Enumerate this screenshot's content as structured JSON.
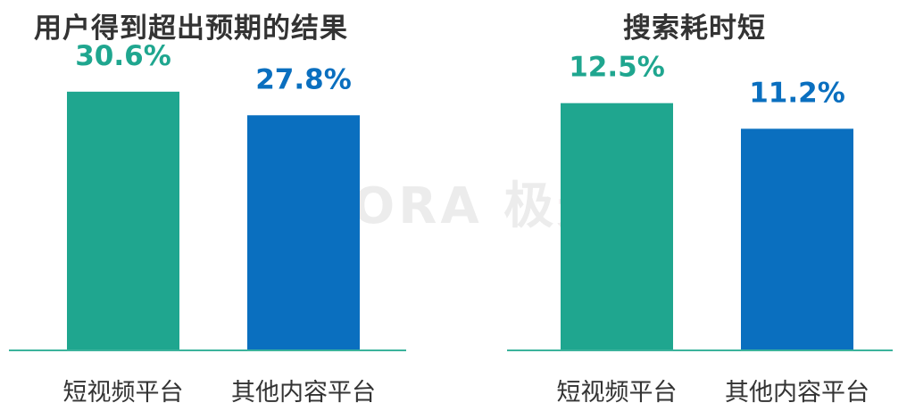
{
  "watermark": "URORA 极光",
  "colors": {
    "series_a": "#1FA68F",
    "series_b": "#0A6FBF",
    "axis": "#3BB39C",
    "label_a": "#1FA68F",
    "label_b": "#0A6FBF"
  },
  "chart_data": [
    {
      "type": "bar",
      "title": "用户得到超出预期的结果",
      "categories": [
        "短视频平台",
        "其他内容平台"
      ],
      "values": [
        30.6,
        27.8
      ],
      "value_labels": [
        "30.6%",
        "27.8%"
      ],
      "ylim": [
        0,
        40
      ]
    },
    {
      "type": "bar",
      "title": "搜索耗时短",
      "categories": [
        "短视频平台",
        "其他内容平台"
      ],
      "values": [
        12.5,
        11.2
      ],
      "value_labels": [
        "12.5%",
        "11.2%"
      ],
      "ylim": [
        0,
        17.1
      ]
    }
  ]
}
